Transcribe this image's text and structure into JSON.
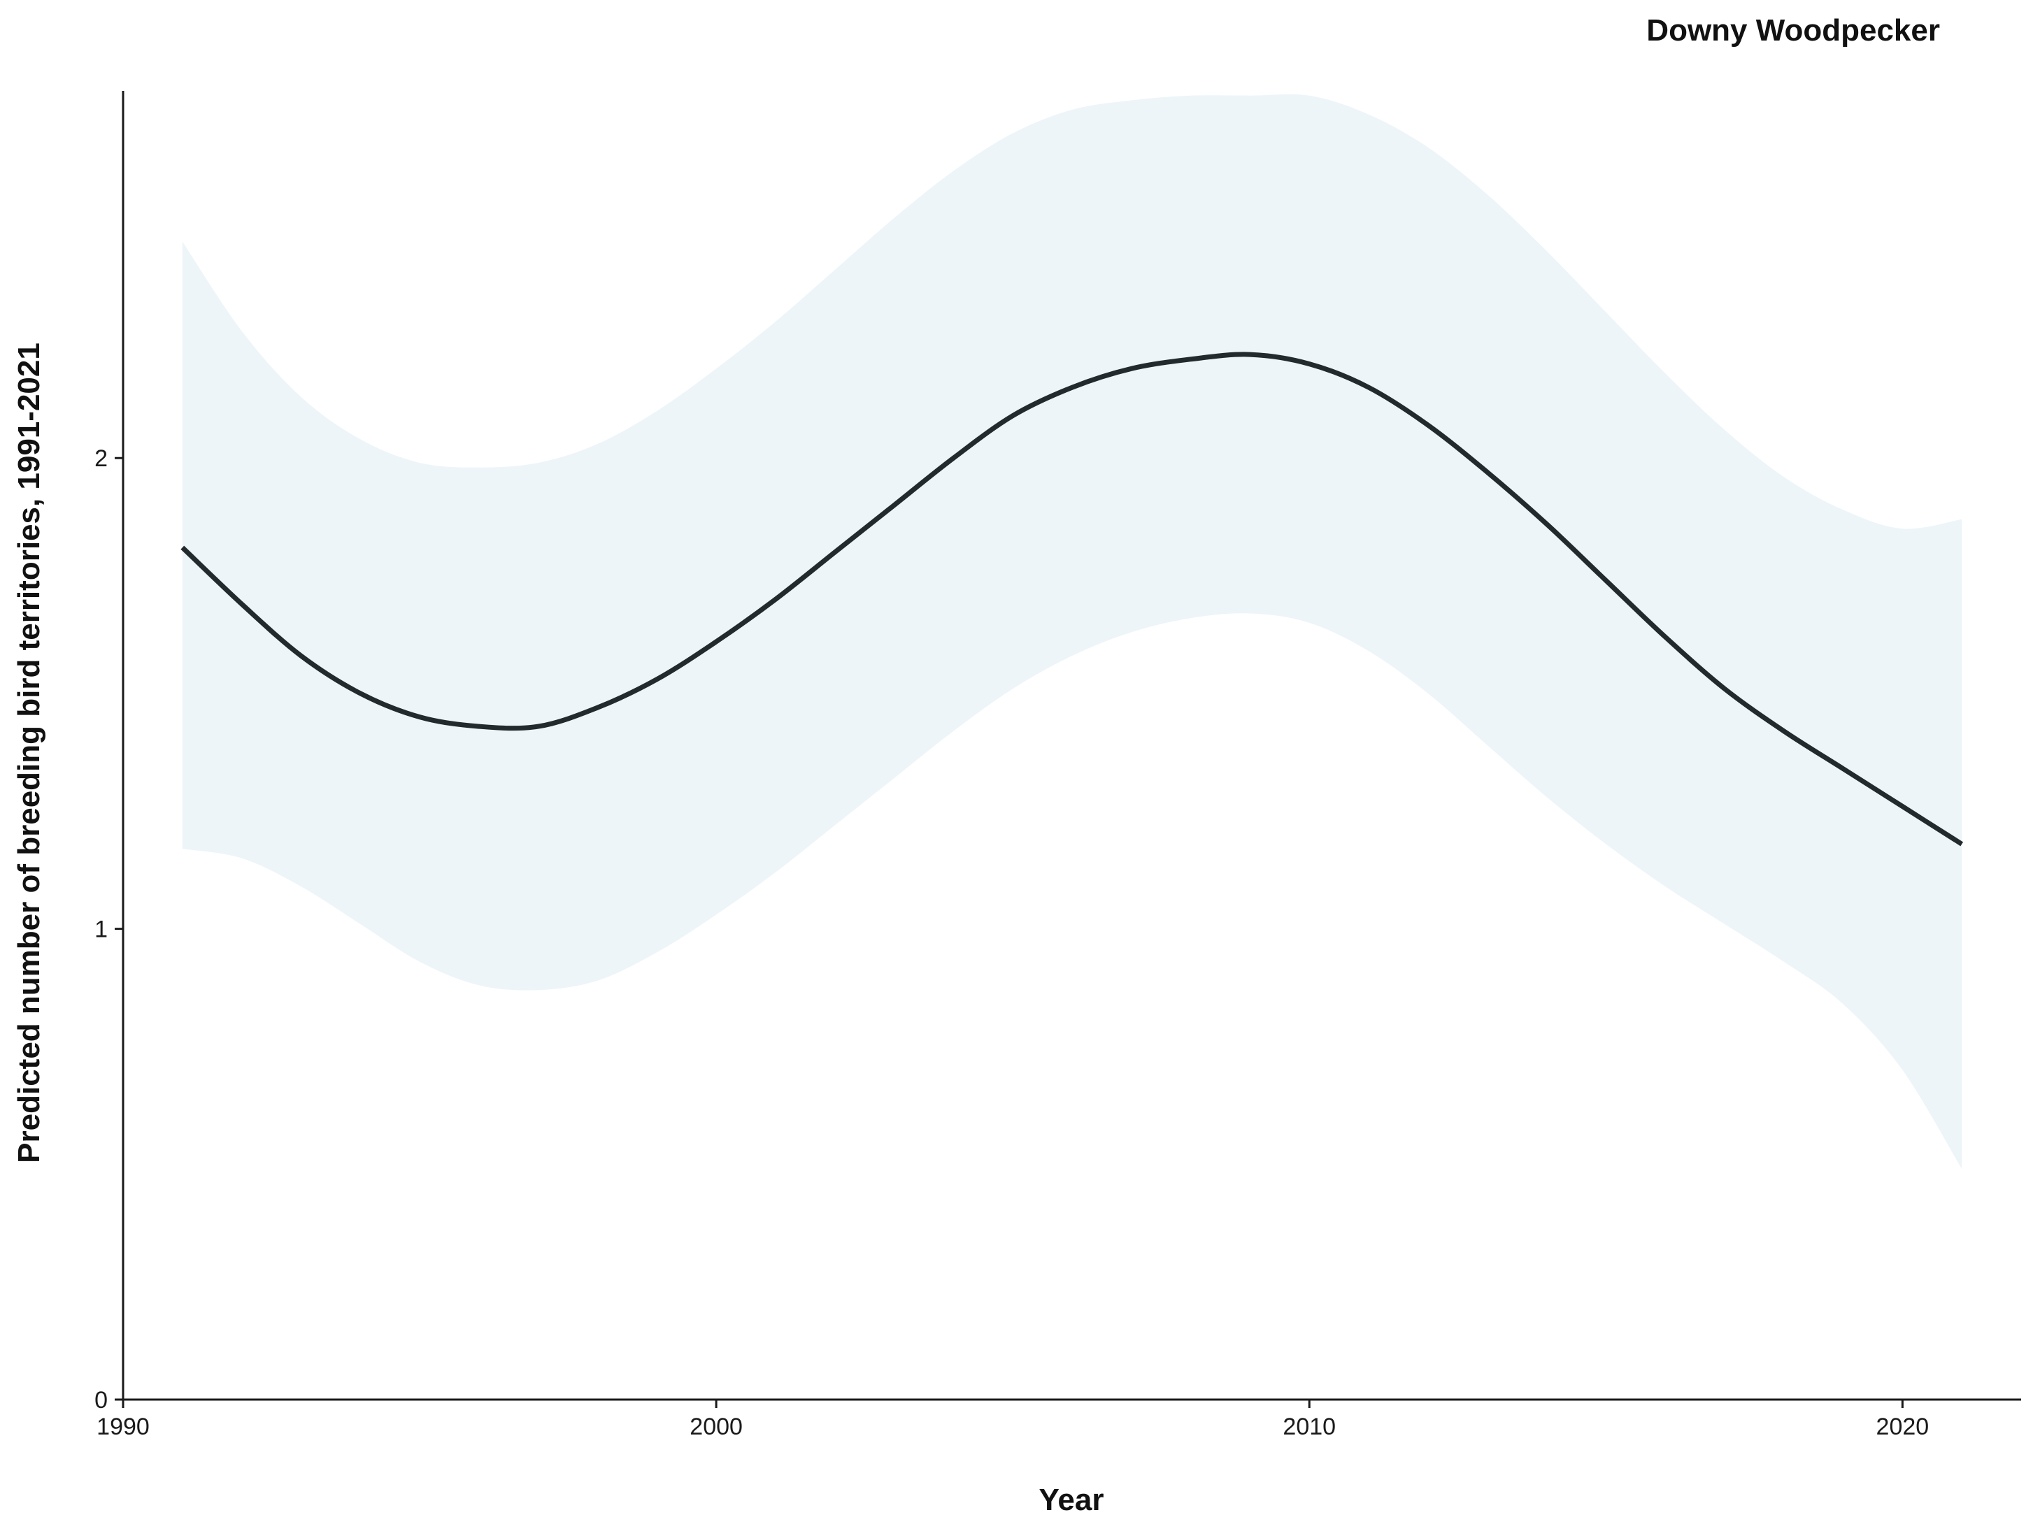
{
  "chart_data": {
    "type": "line",
    "title": "Downy Woodpecker",
    "xlabel": "Year",
    "ylabel": "Predicted number of breeding bird territories, 1991-2021",
    "xlim": [
      1990,
      2022
    ],
    "ylim": [
      0,
      2.78
    ],
    "x_ticks": [
      1990,
      2000,
      2010,
      2020
    ],
    "y_ticks": [
      0,
      1,
      2
    ],
    "grid": false,
    "legend": "none",
    "colors": {
      "line": "#222a2e",
      "band": "#edf5f9",
      "axis": "#1a1a1a"
    },
    "x": [
      1991,
      1992,
      1993,
      1994,
      1995,
      1996,
      1997,
      1998,
      1999,
      2000,
      2001,
      2002,
      2003,
      2004,
      2005,
      2006,
      2007,
      2008,
      2009,
      2010,
      2011,
      2012,
      2013,
      2014,
      2015,
      2016,
      2017,
      2018,
      2019,
      2020,
      2021
    ],
    "fit": [
      1.81,
      1.69,
      1.58,
      1.5,
      1.45,
      1.43,
      1.43,
      1.47,
      1.53,
      1.61,
      1.7,
      1.8,
      1.9,
      2.0,
      2.09,
      2.15,
      2.19,
      2.21,
      2.22,
      2.2,
      2.15,
      2.07,
      1.97,
      1.86,
      1.74,
      1.62,
      1.51,
      1.42,
      1.34,
      1.26,
      1.18
    ],
    "upper": [
      2.46,
      2.27,
      2.13,
      2.04,
      1.99,
      1.98,
      1.99,
      2.03,
      2.1,
      2.19,
      2.29,
      2.4,
      2.51,
      2.61,
      2.69,
      2.74,
      2.76,
      2.77,
      2.77,
      2.77,
      2.73,
      2.66,
      2.56,
      2.44,
      2.31,
      2.18,
      2.06,
      1.96,
      1.89,
      1.85,
      1.87
    ],
    "lower": [
      1.17,
      1.15,
      1.09,
      1.01,
      0.93,
      0.88,
      0.87,
      0.89,
      0.95,
      1.03,
      1.12,
      1.22,
      1.32,
      1.42,
      1.51,
      1.58,
      1.63,
      1.66,
      1.67,
      1.65,
      1.59,
      1.5,
      1.39,
      1.28,
      1.18,
      1.09,
      1.01,
      0.93,
      0.84,
      0.7,
      0.49
    ]
  }
}
